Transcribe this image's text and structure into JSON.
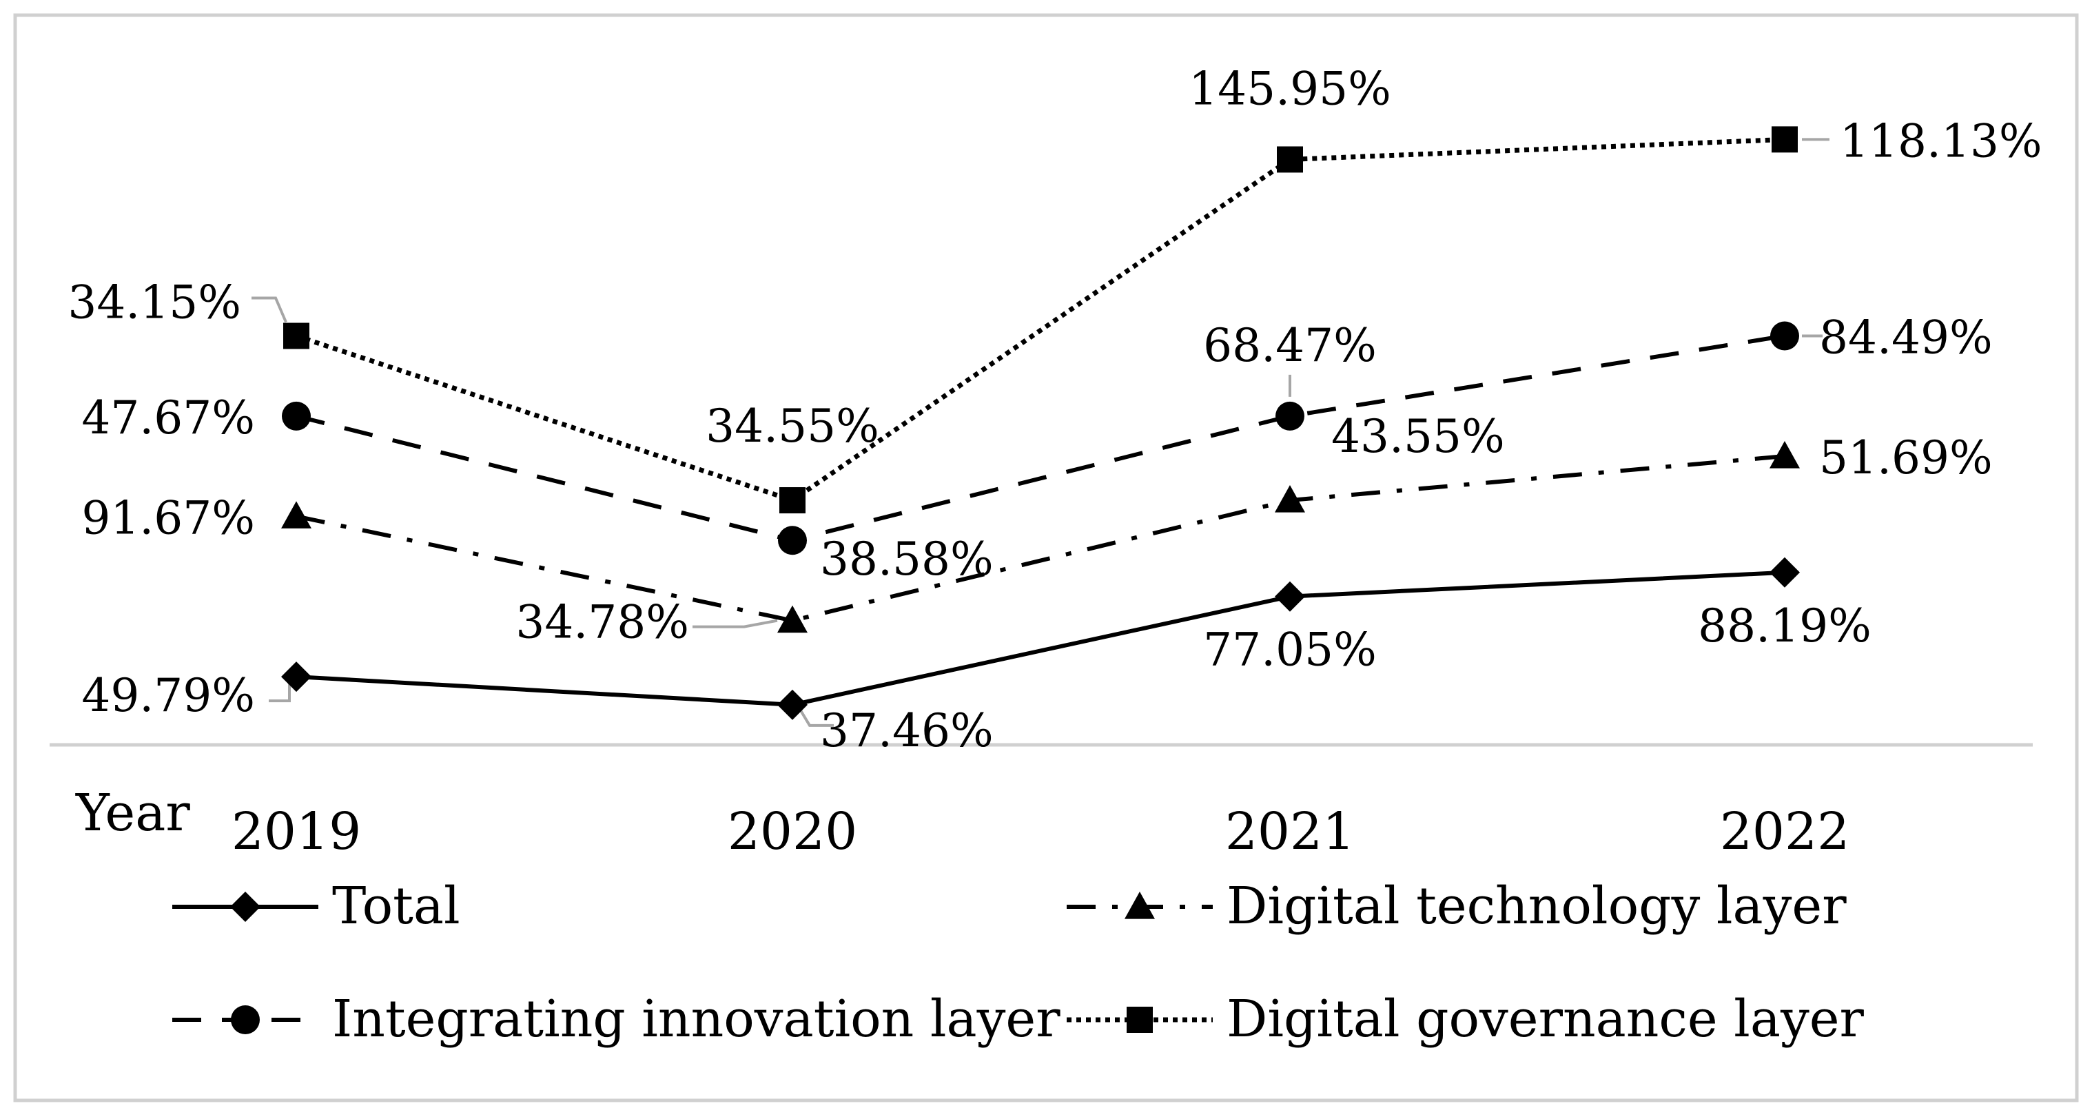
{
  "chart_data": {
    "type": "line",
    "title": "",
    "xlabel": "Year",
    "ylabel": "",
    "categories": [
      "2019",
      "2020",
      "2021",
      "2022"
    ],
    "ylim": [
      0,
      160
    ],
    "grid": false,
    "legend_position": "bottom",
    "series": [
      {
        "name": "Total",
        "line_style": "solid",
        "marker": "diamond",
        "plot_values": [
          17,
          10,
          37,
          43
        ],
        "labels": [
          "49.79%",
          "37.46%",
          "77.05%",
          "88.19%"
        ]
      },
      {
        "name": "Digital technology layer",
        "line_style": "dash-dot",
        "marker": "triangle",
        "plot_values": [
          57,
          31,
          61,
          72
        ],
        "labels": [
          "91.67%",
          "34.78%",
          "43.55%",
          "51.69%"
        ]
      },
      {
        "name": "Integrating innovation layer",
        "line_style": "dashed",
        "marker": "circle",
        "plot_values": [
          82,
          51,
          82,
          102
        ],
        "labels": [
          "47.67%",
          "38.58%",
          "68.47%",
          "84.49%"
        ]
      },
      {
        "name": "Digital governance layer",
        "line_style": "dotted",
        "marker": "square",
        "plot_values": [
          102,
          61,
          146,
          151
        ],
        "labels": [
          "34.15%",
          "34.55%",
          "145.95%",
          "118.13%"
        ]
      }
    ]
  }
}
